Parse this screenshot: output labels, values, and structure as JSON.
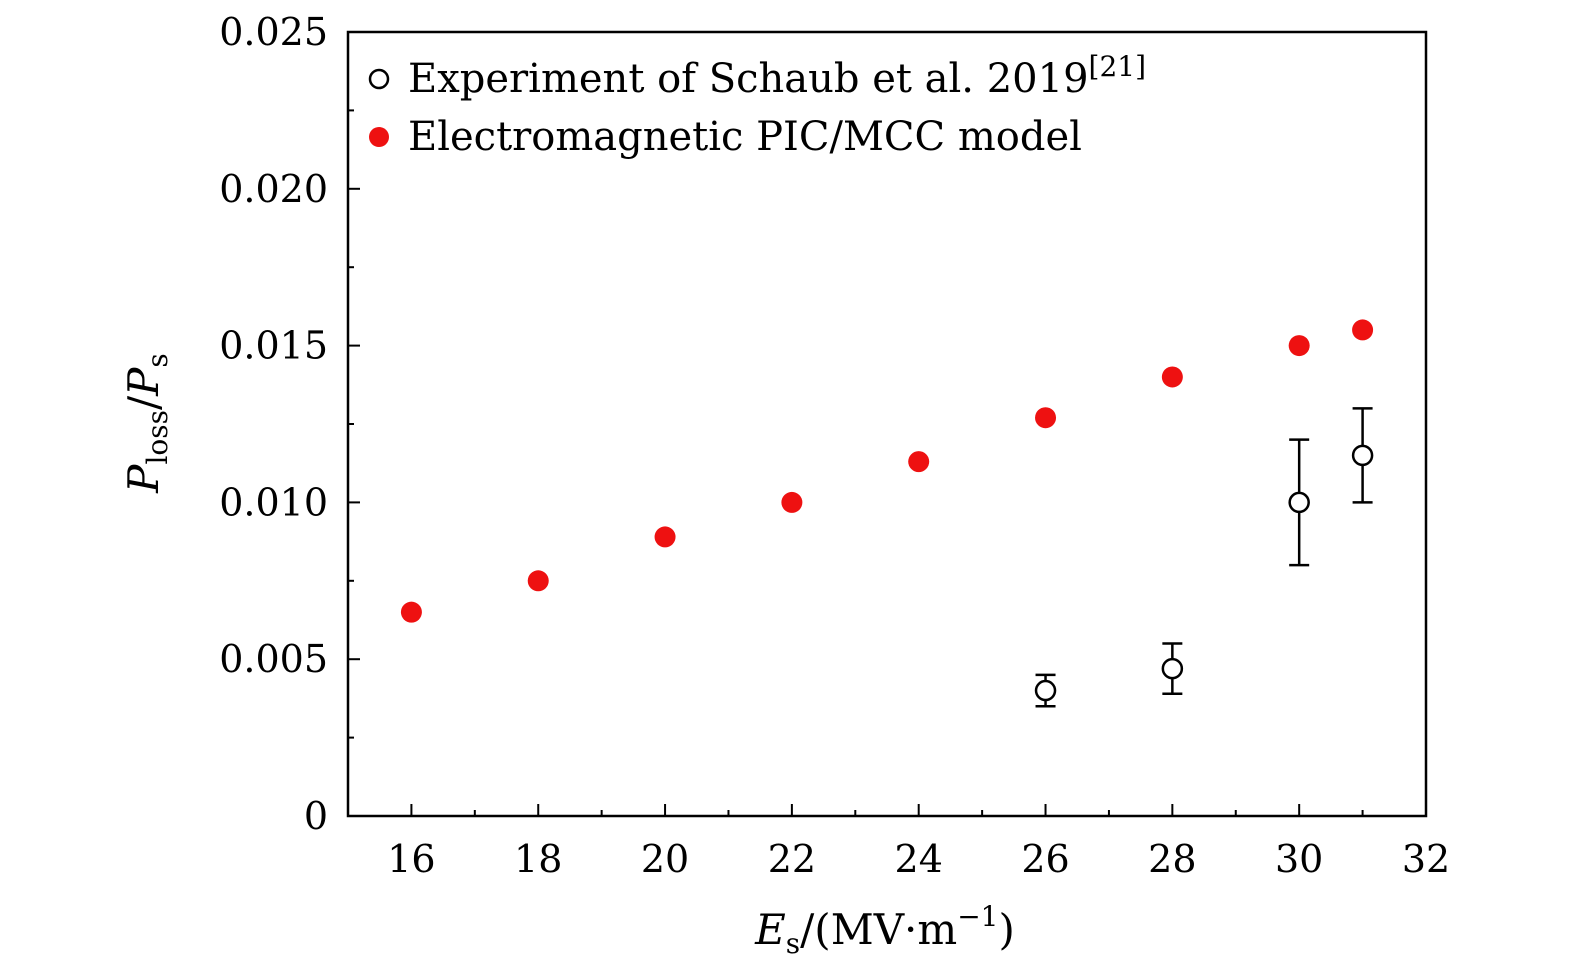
{
  "chart_data": {
    "type": "scatter",
    "title": "",
    "xlabel": {
      "symbol": "E",
      "subscript": "s",
      "unit_open": "/(MV·m",
      "exponent": "−1",
      "unit_close": ")"
    },
    "ylabel": {
      "symbol": "P",
      "subscript": "loss",
      "separator": "/",
      "symbol2": "P",
      "subscript2": "s"
    },
    "xlim": [
      15,
      32
    ],
    "ylim": [
      0,
      0.025
    ],
    "x_ticks": [
      16,
      18,
      20,
      22,
      24,
      26,
      28,
      30,
      32
    ],
    "x_tick_labels": [
      "16",
      "18",
      "20",
      "22",
      "24",
      "26",
      "28",
      "30",
      "32"
    ],
    "y_ticks": [
      0,
      0.005,
      0.01,
      0.015,
      0.02,
      0.025
    ],
    "y_tick_labels": [
      "0",
      "0.005",
      "0.010",
      "0.015",
      "0.020",
      "0.025"
    ],
    "legend_position": "top-left",
    "grid": false,
    "series": [
      {
        "name": "Experiment of Schaub et al. 2019",
        "citation": "[21]",
        "marker": "open-circle",
        "color": "#000000",
        "x": [
          26,
          28,
          30,
          31
        ],
        "y": [
          0.004,
          0.0047,
          0.01,
          0.0115
        ],
        "yerr_low": [
          0.0035,
          0.0039,
          0.008,
          0.01
        ],
        "yerr_high": [
          0.0045,
          0.0055,
          0.012,
          0.013
        ]
      },
      {
        "name": "Electromagnetic PIC/MCC model",
        "marker": "filled-circle",
        "color": "#ee1111",
        "x": [
          16,
          18,
          20,
          22,
          24,
          26,
          28,
          30,
          31
        ],
        "y": [
          0.0065,
          0.0075,
          0.0089,
          0.01,
          0.0113,
          0.0127,
          0.014,
          0.015,
          0.0155
        ]
      }
    ]
  }
}
